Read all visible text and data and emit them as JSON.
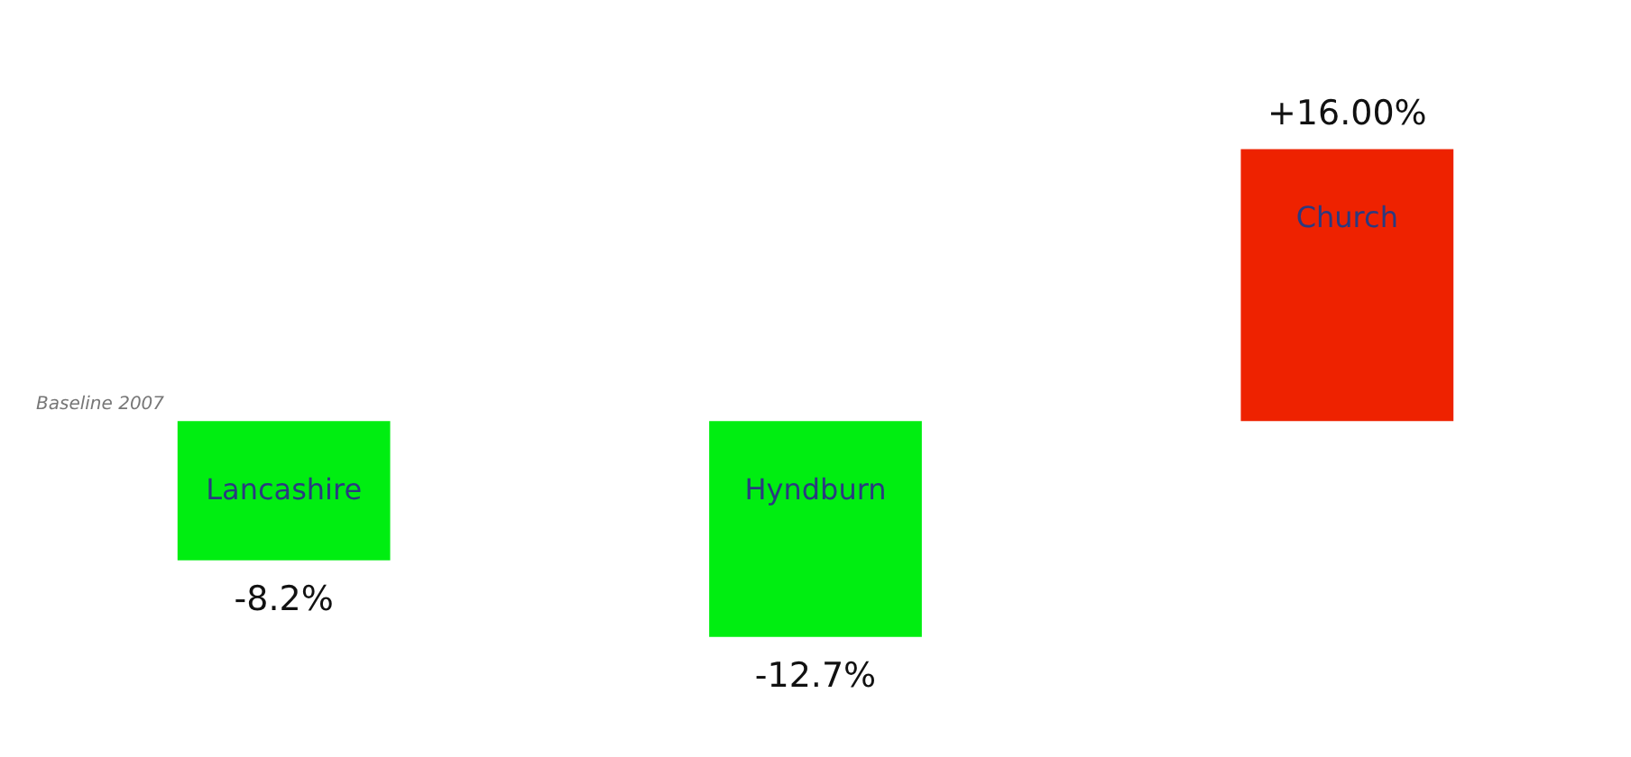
{
  "chart_data": {
    "type": "bar",
    "categories": [
      "Lancashire",
      "Hyndburn",
      "Church"
    ],
    "values": [
      -8.2,
      -12.7,
      16.0
    ],
    "value_labels": [
      "-8.2%",
      "-12.7%",
      "+16.00%"
    ],
    "colors": [
      "#00ee11",
      "#00ee11",
      "#ee2200"
    ],
    "annotations": [
      "Baseline 2007"
    ],
    "grid": false
  }
}
